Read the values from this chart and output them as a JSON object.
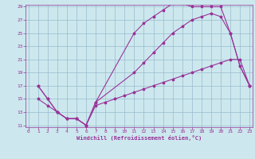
{
  "xlabel": "Windchill (Refroidissement éolien,°C)",
  "bg_color": "#cce8ee",
  "line_color": "#993399",
  "grid_color": "#99bbcc",
  "xmin": 0,
  "xmax": 23,
  "ymin": 11,
  "ymax": 29,
  "yticks": [
    11,
    13,
    15,
    17,
    19,
    21,
    23,
    25,
    27,
    29
  ],
  "xticks": [
    0,
    1,
    2,
    3,
    4,
    5,
    6,
    7,
    8,
    9,
    10,
    11,
    12,
    13,
    14,
    15,
    16,
    17,
    18,
    19,
    20,
    21,
    22,
    23
  ],
  "line1_x": [
    1,
    2,
    3,
    4,
    5,
    6,
    7,
    11,
    12,
    13,
    14,
    15,
    16,
    17,
    18,
    19,
    20,
    21,
    22,
    23
  ],
  "line1_y": [
    17,
    15,
    13,
    12,
    12,
    11,
    14.5,
    25,
    26.5,
    27.5,
    28.5,
    29.5,
    29.5,
    29,
    29,
    29,
    29,
    25,
    20,
    17
  ],
  "line2_x": [
    1,
    2,
    3,
    4,
    5,
    6,
    7,
    11,
    12,
    13,
    14,
    15,
    16,
    17,
    18,
    19,
    20,
    21,
    22,
    23
  ],
  "line2_y": [
    17,
    15,
    13,
    12,
    12,
    11,
    14.5,
    19,
    20.5,
    22,
    23.5,
    25,
    26,
    27,
    27.5,
    28,
    27.5,
    25,
    20,
    17
  ],
  "line3_x": [
    1,
    2,
    3,
    4,
    5,
    6,
    7,
    8,
    9,
    10,
    11,
    12,
    13,
    14,
    15,
    16,
    17,
    18,
    19,
    20,
    21,
    22,
    23
  ],
  "line3_y": [
    15,
    14,
    13,
    12,
    12,
    11,
    14,
    14.5,
    15,
    15.5,
    16,
    16.5,
    17,
    17.5,
    18,
    18.5,
    19,
    19.5,
    20,
    20.5,
    21,
    21,
    17
  ]
}
